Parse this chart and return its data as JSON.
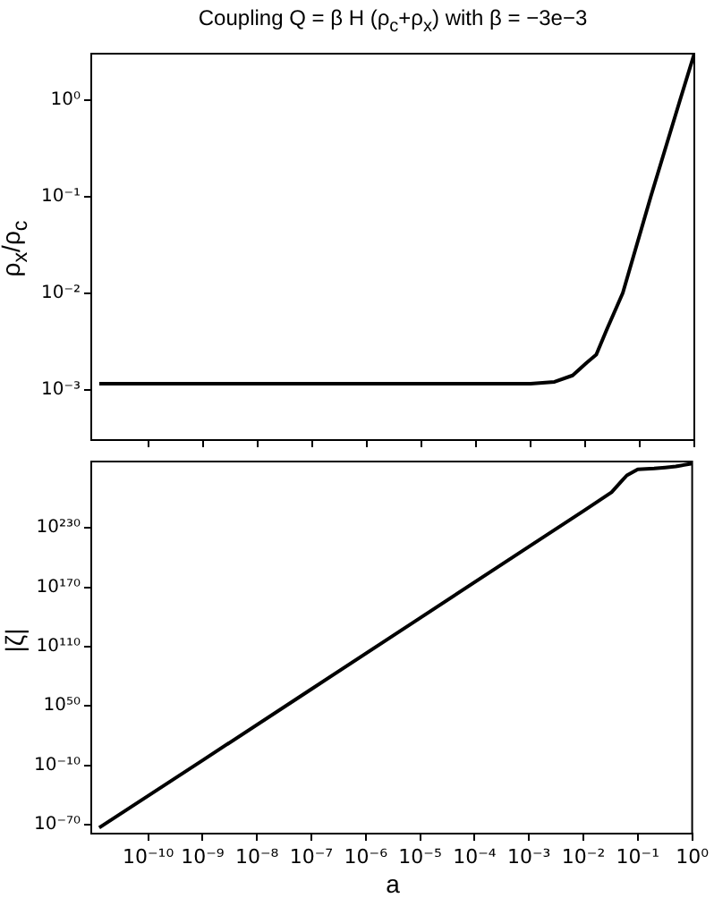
{
  "chart_data": [
    {
      "type": "line",
      "title": "Coupling Q = β H (ρ$_{c}$+ρ$_{x}$)  with  β = −3e−3",
      "ylabel": "ρ$_{x}$/ρ$_{c}$",
      "log": "xy",
      "grid": false,
      "legend": false,
      "marker": "none",
      "line_style": "solid",
      "tick_labels": "y",
      "xlim": [
        9e-12,
        1
      ],
      "xticks": [
        {
          "value": 1e-10,
          "label": null
        },
        {
          "value": 1e-09,
          "label": null
        },
        {
          "value": 1e-08,
          "label": null
        },
        {
          "value": 1e-07,
          "label": null
        },
        {
          "value": 1e-06,
          "label": null
        },
        {
          "value": 1e-05,
          "label": null
        },
        {
          "value": 0.0001,
          "label": null
        },
        {
          "value": 0.001,
          "label": null
        },
        {
          "value": 0.01,
          "label": null
        },
        {
          "value": 0.1,
          "label": null
        },
        {
          "value": 1,
          "label": null
        }
      ],
      "ylim": [
        0.00031,
        3
      ],
      "yticks": [
        {
          "value": 0.001,
          "label": "10⁻³"
        },
        {
          "value": 0.01,
          "label": "10⁻²"
        },
        {
          "value": 0.1,
          "label": "10⁻¹"
        },
        {
          "value": 1,
          "label": "10⁰"
        }
      ],
      "series": [
        {
          "color": "#000000",
          "x": [
            1.26e-11,
            1e-08,
            1e-05,
            0.001,
            0.00275,
            0.0059,
            0.0107,
            0.016,
            0.025,
            0.049,
            0.16,
            0.55,
            1
          ],
          "values": [
            0.00115,
            0.00115,
            0.00115,
            0.00115,
            0.0012,
            0.0014,
            0.0019,
            0.0023,
            0.0042,
            0.01,
            0.1,
            1,
            3
          ]
        }
      ]
    },
    {
      "type": "line",
      "xlabel": "a",
      "ylabel": "|ζ|",
      "log": "xy",
      "grid": false,
      "legend": false,
      "marker": "none",
      "line_style": "solid",
      "xlim": [
        9e-12,
        1
      ],
      "xticks": [
        {
          "value": 1e-10,
          "label": "10⁻¹⁰"
        },
        {
          "value": 1e-09,
          "label": "10⁻⁹"
        },
        {
          "value": 1e-08,
          "label": "10⁻⁸"
        },
        {
          "value": 1e-07,
          "label": "10⁻⁷"
        },
        {
          "value": 1e-06,
          "label": "10⁻⁶"
        },
        {
          "value": 1e-05,
          "label": "10⁻⁵"
        },
        {
          "value": 0.0001,
          "label": "10⁻⁴"
        },
        {
          "value": 0.001,
          "label": "10⁻³"
        },
        {
          "value": 0.01,
          "label": "10⁻²"
        },
        {
          "value": 0.1,
          "label": "10⁻¹"
        },
        {
          "value": 1,
          "label": "10⁰"
        }
      ],
      "ylim": [
        1e-79,
        1e+297
      ],
      "yticks": [
        {
          "value": 1e-70,
          "label": "10⁻⁷⁰"
        },
        {
          "value": 1e-10,
          "label": "10⁻¹⁰"
        },
        {
          "value": 1e+50,
          "label": "10⁵⁰"
        },
        {
          "value": 1e+110,
          "label": "10¹¹⁰"
        },
        {
          "value": 1e+170,
          "label": "10¹⁷⁰"
        },
        {
          "value": 1e+230,
          "label": "10²³⁰"
        }
      ],
      "series": [
        {
          "color": "#000000",
          "x": [
            1.26e-11,
            1e-09,
            1e-07,
            1e-05,
            0.001,
            0.01,
            0.033,
            0.05,
            0.063,
            0.1,
            0.2,
            0.32,
            0.5,
            1
          ],
          "values": [
            1e-73,
            1e-05,
            1e+67,
            1e+139,
            1e+211,
            1e+247,
            1e+266,
            1e+277,
            1e+283,
            1e+289,
            1e+290,
            1e+291,
            1e+292,
            1e+295
          ]
        }
      ]
    }
  ]
}
